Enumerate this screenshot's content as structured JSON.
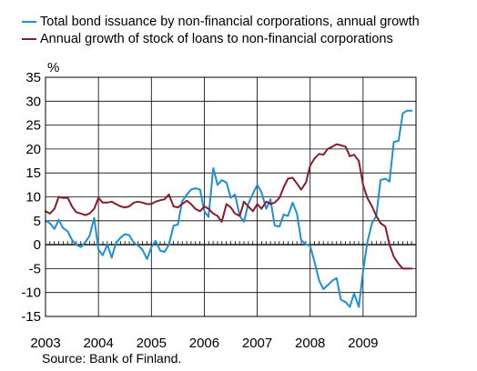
{
  "chart_data": {
    "type": "line",
    "title": "",
    "xlabel": "",
    "ylabel": "%",
    "ylim": [
      -15,
      35
    ],
    "yticks": [
      35,
      30,
      25,
      20,
      15,
      10,
      5,
      0,
      -5,
      -10,
      -15
    ],
    "xlim": [
      2003,
      2010
    ],
    "xticks": [
      "2003",
      "2004",
      "2005",
      "2006",
      "2007",
      "2008",
      "2009"
    ],
    "grid": true,
    "legend_position": "top",
    "series": [
      {
        "name": "Total bond issuance by non-financial corporations, annual growth",
        "color": "#1e8fd5",
        "x": [
          2003.0,
          2003.08,
          2003.17,
          2003.25,
          2003.33,
          2003.42,
          2003.5,
          2003.58,
          2003.67,
          2003.75,
          2003.83,
          2003.92,
          2004.0,
          2004.08,
          2004.17,
          2004.25,
          2004.33,
          2004.42,
          2004.5,
          2004.58,
          2004.67,
          2004.75,
          2004.83,
          2004.92,
          2005.0,
          2005.08,
          2005.17,
          2005.25,
          2005.33,
          2005.42,
          2005.5,
          2005.58,
          2005.67,
          2005.75,
          2005.83,
          2005.92,
          2006.0,
          2006.08,
          2006.17,
          2006.25,
          2006.33,
          2006.42,
          2006.5,
          2006.58,
          2006.67,
          2006.75,
          2006.83,
          2006.92,
          2007.0,
          2007.08,
          2007.17,
          2007.25,
          2007.33,
          2007.42,
          2007.5,
          2007.58,
          2007.67,
          2007.75,
          2007.83,
          2007.92,
          2008.0,
          2008.08,
          2008.17,
          2008.25,
          2008.33,
          2008.42,
          2008.5,
          2008.58,
          2008.67,
          2008.75,
          2008.83,
          2008.92,
          2009.0,
          2009.08,
          2009.17,
          2009.25,
          2009.33,
          2009.42,
          2009.5,
          2009.58,
          2009.67,
          2009.75,
          2009.83,
          2009.92
        ],
        "values": [
          5.0,
          4.5,
          3.3,
          5.2,
          3.5,
          2.8,
          1.0,
          0.0,
          -0.5,
          0.5,
          1.8,
          5.6,
          -1.0,
          -2.2,
          0.0,
          -2.7,
          0.3,
          1.5,
          2.2,
          2.0,
          0.4,
          -0.2,
          -1.0,
          -3.0,
          -0.5,
          0.8,
          -1.3,
          -1.5,
          0.0,
          4.0,
          4.2,
          9.0,
          10.5,
          11.5,
          11.8,
          11.5,
          7.0,
          5.8,
          16.0,
          12.5,
          13.5,
          13.0,
          9.8,
          10.5,
          6.0,
          4.8,
          8.5,
          10.7,
          12.5,
          11.0,
          7.5,
          9.5,
          4.0,
          3.8,
          6.3,
          6.0,
          8.8,
          6.5,
          1.0,
          0.0,
          -0.2,
          -3.5,
          -7.5,
          -9.3,
          -8.5,
          -7.5,
          -7.0,
          -11.5,
          -12.0,
          -13.0,
          -10.2,
          -13.0,
          -5.5,
          0.5,
          4.5,
          6.0,
          13.5,
          13.8,
          13.2,
          21.5,
          21.7,
          27.5,
          28.0,
          28.0
        ]
      },
      {
        "name": "Annual growth of stock of loans to non-financial corporations",
        "color": "#8b1a2a",
        "x": [
          2003.0,
          2003.08,
          2003.17,
          2003.25,
          2003.33,
          2003.42,
          2003.5,
          2003.58,
          2003.67,
          2003.75,
          2003.83,
          2003.92,
          2004.0,
          2004.08,
          2004.17,
          2004.25,
          2004.33,
          2004.42,
          2004.5,
          2004.58,
          2004.67,
          2004.75,
          2004.83,
          2004.92,
          2005.0,
          2005.08,
          2005.17,
          2005.25,
          2005.33,
          2005.42,
          2005.5,
          2005.58,
          2005.67,
          2005.75,
          2005.83,
          2005.92,
          2006.0,
          2006.08,
          2006.17,
          2006.25,
          2006.33,
          2006.42,
          2006.5,
          2006.58,
          2006.67,
          2006.75,
          2006.83,
          2006.92,
          2007.0,
          2007.08,
          2007.17,
          2007.25,
          2007.33,
          2007.42,
          2007.5,
          2007.58,
          2007.67,
          2007.75,
          2007.83,
          2007.92,
          2008.0,
          2008.08,
          2008.17,
          2008.25,
          2008.33,
          2008.42,
          2008.5,
          2008.58,
          2008.67,
          2008.75,
          2008.83,
          2008.92,
          2009.0,
          2009.08,
          2009.17,
          2009.25,
          2009.33,
          2009.42,
          2009.5,
          2009.58,
          2009.67,
          2009.75,
          2009.83,
          2009.92
        ],
        "values": [
          7.0,
          6.5,
          7.5,
          10.0,
          9.8,
          9.8,
          8.0,
          6.8,
          6.5,
          6.2,
          6.5,
          7.5,
          9.8,
          8.8,
          8.8,
          9.0,
          8.5,
          8.0,
          7.8,
          8.0,
          8.8,
          9.0,
          8.8,
          8.5,
          8.5,
          9.0,
          9.3,
          9.5,
          10.5,
          8.0,
          7.8,
          8.5,
          9.2,
          8.5,
          7.5,
          7.0,
          8.0,
          7.5,
          6.5,
          6.0,
          4.8,
          8.5,
          7.8,
          6.5,
          6.0,
          9.0,
          8.0,
          7.0,
          8.5,
          7.5,
          9.0,
          8.5,
          8.8,
          9.8,
          12.0,
          13.8,
          14.0,
          12.8,
          11.5,
          13.0,
          16.5,
          18.0,
          19.0,
          18.8,
          20.0,
          20.5,
          21.0,
          20.8,
          20.5,
          18.5,
          18.8,
          17.5,
          12.5,
          9.8,
          8.0,
          6.0,
          4.5,
          3.8,
          0.0,
          -2.5,
          -4.0,
          -5.0,
          -5.0,
          -5.0
        ]
      }
    ],
    "source": "Source: Bank of Finland."
  }
}
